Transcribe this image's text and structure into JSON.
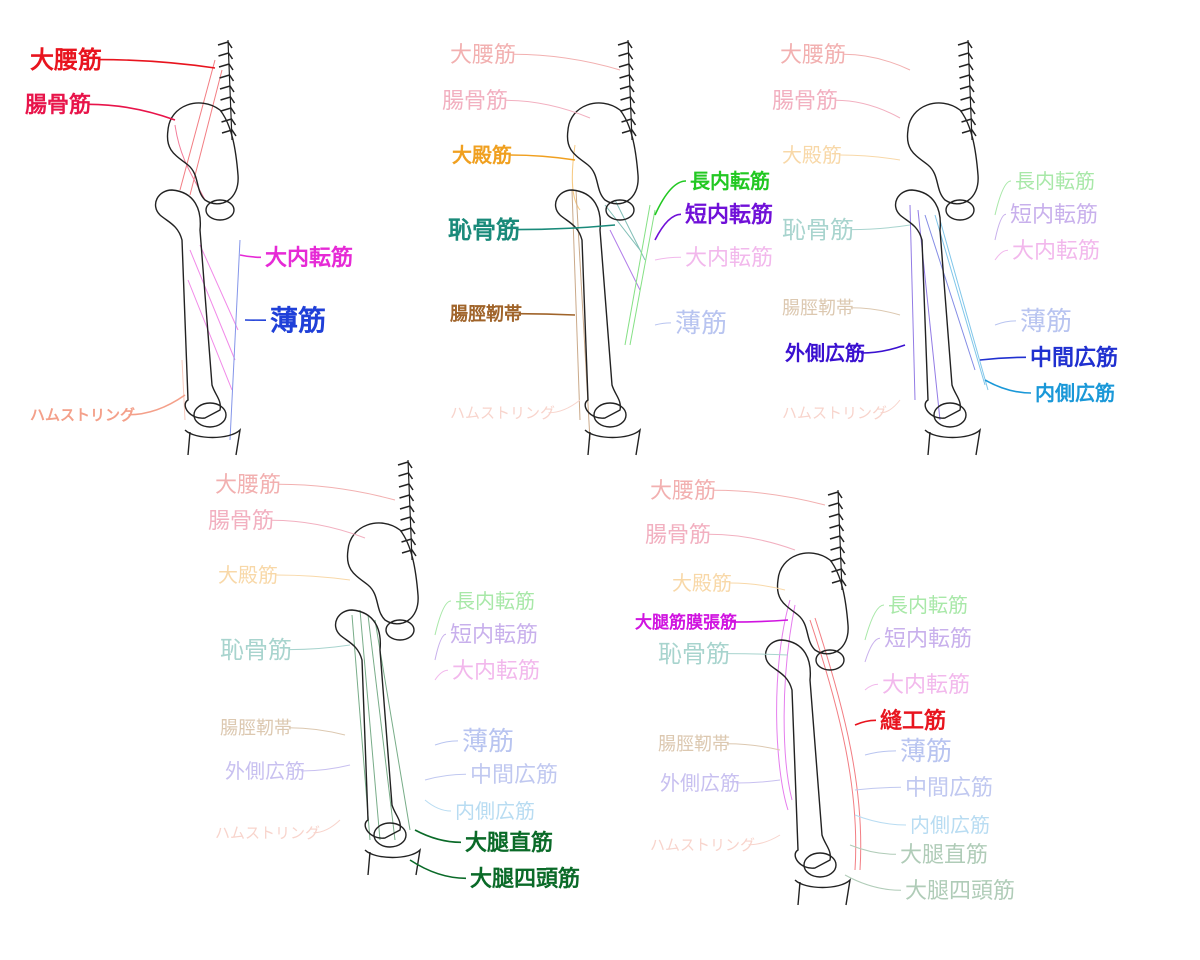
{
  "panels": [
    {
      "id": "p1",
      "labels": [
        {
          "key": "psoas",
          "text": "大腰筋",
          "color": "#e8141e",
          "faded": false
        },
        {
          "key": "iliacus",
          "text": "腸骨筋",
          "color": "#e8144a",
          "faded": false
        },
        {
          "key": "adductor_magnus",
          "text": "大内転筋",
          "color": "#e62ad6",
          "faded": false
        },
        {
          "key": "gracilis",
          "text": "薄筋",
          "color": "#2040d8",
          "faded": false
        },
        {
          "key": "hamstrings",
          "text": "ハムストリング",
          "color": "#f4a08a",
          "faded": false
        }
      ]
    },
    {
      "id": "p2",
      "labels": [
        {
          "key": "psoas",
          "text": "大腰筋",
          "color": "#f2b0b0",
          "faded": true
        },
        {
          "key": "iliacus",
          "text": "腸骨筋",
          "color": "#f2b0c0",
          "faded": true
        },
        {
          "key": "glute_max",
          "text": "大殿筋",
          "color": "#f0a020",
          "faded": false
        },
        {
          "key": "adductor_longus",
          "text": "長内転筋",
          "color": "#22c822",
          "faded": false
        },
        {
          "key": "adductor_brevis",
          "text": "短内転筋",
          "color": "#7010d8",
          "faded": false
        },
        {
          "key": "pectineus",
          "text": "恥骨筋",
          "color": "#1a8a7a",
          "faded": false
        },
        {
          "key": "adductor_magnus",
          "text": "大内転筋",
          "color": "#f2b8ec",
          "faded": true
        },
        {
          "key": "gracilis",
          "text": "薄筋",
          "color": "#b8c4f0",
          "faded": true
        },
        {
          "key": "it_band",
          "text": "腸脛靭帯",
          "color": "#a0642a",
          "faded": false
        },
        {
          "key": "hamstrings",
          "text": "ハムストリング",
          "color": "#f8d4cc",
          "faded": true
        }
      ]
    },
    {
      "id": "p3",
      "labels": [
        {
          "key": "psoas",
          "text": "大腰筋",
          "color": "#f2b0b0",
          "faded": true
        },
        {
          "key": "iliacus",
          "text": "腸骨筋",
          "color": "#f2b0c0",
          "faded": true
        },
        {
          "key": "glute_max",
          "text": "大殿筋",
          "color": "#f8d8a8",
          "faded": true
        },
        {
          "key": "adductor_longus",
          "text": "長内転筋",
          "color": "#a8e8a8",
          "faded": true
        },
        {
          "key": "adductor_brevis",
          "text": "短内転筋",
          "color": "#c8b0ec",
          "faded": true
        },
        {
          "key": "pectineus",
          "text": "恥骨筋",
          "color": "#a8d4ce",
          "faded": true
        },
        {
          "key": "adductor_magnus",
          "text": "大内転筋",
          "color": "#f2b8ec",
          "faded": true
        },
        {
          "key": "gracilis",
          "text": "薄筋",
          "color": "#b8c4f0",
          "faded": true
        },
        {
          "key": "it_band",
          "text": "腸脛靭帯",
          "color": "#dcc8b0",
          "faded": true
        },
        {
          "key": "vastus_lateralis",
          "text": "外側広筋",
          "color": "#3a10d0",
          "faded": false
        },
        {
          "key": "vastus_intermedius",
          "text": "中間広筋",
          "color": "#2030d0",
          "faded": false
        },
        {
          "key": "vastus_medialis",
          "text": "内側広筋",
          "color": "#1a98d8",
          "faded": false
        },
        {
          "key": "hamstrings",
          "text": "ハムストリング",
          "color": "#f8d4cc",
          "faded": true
        }
      ]
    },
    {
      "id": "p4",
      "labels": [
        {
          "key": "psoas",
          "text": "大腰筋",
          "color": "#f2b0b0",
          "faded": true
        },
        {
          "key": "iliacus",
          "text": "腸骨筋",
          "color": "#f2b0c0",
          "faded": true
        },
        {
          "key": "glute_max",
          "text": "大殿筋",
          "color": "#f8d8a8",
          "faded": true
        },
        {
          "key": "adductor_longus",
          "text": "長内転筋",
          "color": "#a8e8a8",
          "faded": true
        },
        {
          "key": "adductor_brevis",
          "text": "短内転筋",
          "color": "#c8b0ec",
          "faded": true
        },
        {
          "key": "pectineus",
          "text": "恥骨筋",
          "color": "#a8d4ce",
          "faded": true
        },
        {
          "key": "adductor_magnus",
          "text": "大内転筋",
          "color": "#f2b8ec",
          "faded": true
        },
        {
          "key": "gracilis",
          "text": "薄筋",
          "color": "#b8c4f0",
          "faded": true
        },
        {
          "key": "it_band",
          "text": "腸脛靭帯",
          "color": "#dcc8b0",
          "faded": true
        },
        {
          "key": "vastus_lateralis",
          "text": "外側広筋",
          "color": "#c8c0f0",
          "faded": true
        },
        {
          "key": "vastus_intermedius",
          "text": "中間広筋",
          "color": "#c0c8f0",
          "faded": true
        },
        {
          "key": "vastus_medialis",
          "text": "内側広筋",
          "color": "#b8dcf2",
          "faded": true
        },
        {
          "key": "rectus_femoris",
          "text": "大腿直筋",
          "color": "#0a6a28",
          "faded": false
        },
        {
          "key": "quadriceps",
          "text": "大腿四頭筋",
          "color": "#0a6a28",
          "faded": false
        },
        {
          "key": "hamstrings",
          "text": "ハムストリング",
          "color": "#f8d4cc",
          "faded": true
        }
      ]
    },
    {
      "id": "p5",
      "labels": [
        {
          "key": "psoas",
          "text": "大腰筋",
          "color": "#f2b0b0",
          "faded": true
        },
        {
          "key": "iliacus",
          "text": "腸骨筋",
          "color": "#f2b0c0",
          "faded": true
        },
        {
          "key": "glute_max",
          "text": "大殿筋",
          "color": "#f8d8a8",
          "faded": true
        },
        {
          "key": "tfl",
          "text": "大腿筋膜張筋",
          "color": "#d014e0",
          "faded": false
        },
        {
          "key": "adductor_longus",
          "text": "長内転筋",
          "color": "#a8e8a8",
          "faded": true
        },
        {
          "key": "adductor_brevis",
          "text": "短内転筋",
          "color": "#c8b0ec",
          "faded": true
        },
        {
          "key": "pectineus",
          "text": "恥骨筋",
          "color": "#a8d4ce",
          "faded": true
        },
        {
          "key": "adductor_magnus",
          "text": "大内転筋",
          "color": "#f2b8ec",
          "faded": true
        },
        {
          "key": "sartorius",
          "text": "縫工筋",
          "color": "#e8141e",
          "faded": false
        },
        {
          "key": "gracilis",
          "text": "薄筋",
          "color": "#b8c4f0",
          "faded": true
        },
        {
          "key": "it_band",
          "text": "腸脛靭帯",
          "color": "#dcc8b0",
          "faded": true
        },
        {
          "key": "vastus_lateralis",
          "text": "外側広筋",
          "color": "#c8c0f0",
          "faded": true
        },
        {
          "key": "vastus_intermedius",
          "text": "中間広筋",
          "color": "#c0c8f0",
          "faded": true
        },
        {
          "key": "vastus_medialis",
          "text": "内側広筋",
          "color": "#b8dcf2",
          "faded": true
        },
        {
          "key": "rectus_femoris",
          "text": "大腿直筋",
          "color": "#b0ccb8",
          "faded": true
        },
        {
          "key": "quadriceps",
          "text": "大腿四頭筋",
          "color": "#b0ccb8",
          "faded": true
        },
        {
          "key": "hamstrings",
          "text": "ハムストリング",
          "color": "#f8d4cc",
          "faded": true
        }
      ]
    }
  ]
}
